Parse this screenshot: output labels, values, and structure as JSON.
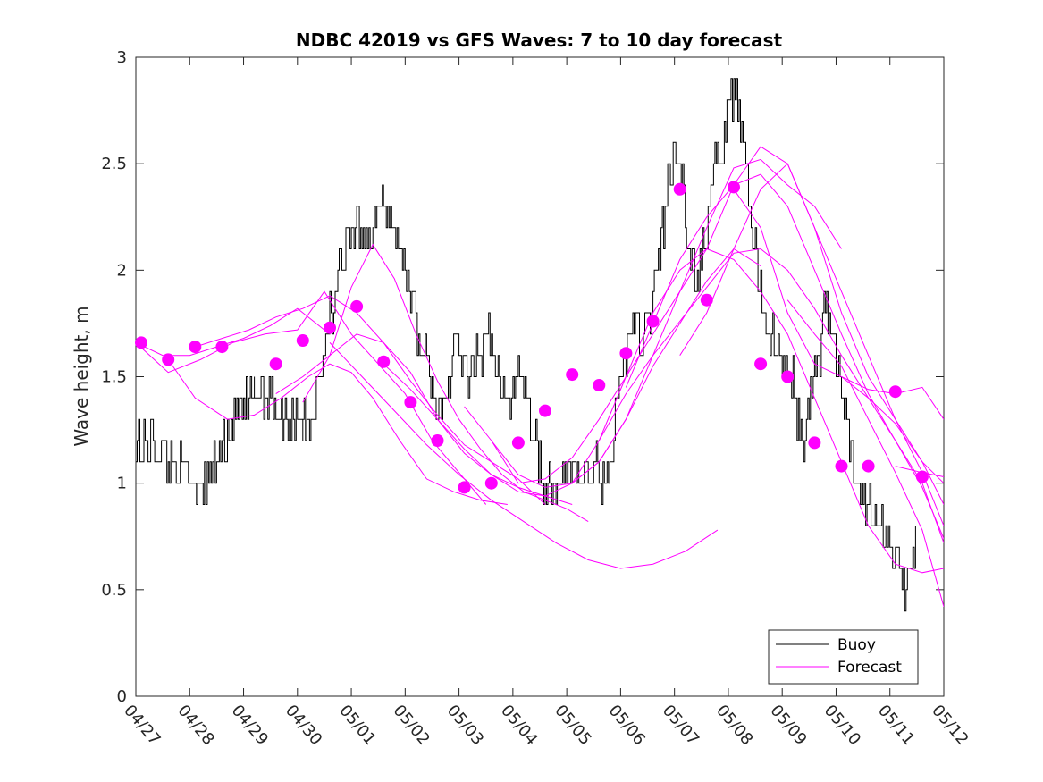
{
  "chart_data": {
    "type": "line",
    "title": "NDBC 42019 vs GFS Waves: 7 to 10 day forecast",
    "xlabel": "",
    "ylabel": "Wave height, m",
    "ylim": [
      0,
      3
    ],
    "yticks": [
      "0",
      "0.5",
      "1",
      "1.5",
      "2",
      "2.5",
      "3"
    ],
    "xlim_days": [
      0,
      15
    ],
    "xticks": [
      "04/27",
      "04/28",
      "04/29",
      "04/30",
      "05/01",
      "05/02",
      "05/03",
      "05/04",
      "05/05",
      "05/06",
      "05/07",
      "05/08",
      "05/09",
      "05/10",
      "05/11",
      "05/12"
    ],
    "legend_position": "bottom-right",
    "grid": false,
    "colors": {
      "buoy": "#000000",
      "forecast": "#ff00ff"
    },
    "legend": [
      {
        "name": "Buoy",
        "color": "#000000"
      },
      {
        "name": "Forecast",
        "color": "#ff00ff"
      }
    ],
    "series": [
      {
        "name": "Buoy",
        "kind": "step-noisy",
        "x": [
          0,
          0.1,
          0.3,
          0.5,
          0.6,
          0.9,
          1.0,
          1.2,
          1.3,
          1.5,
          1.7,
          1.8,
          2.0,
          2.2,
          2.3,
          2.5,
          2.7,
          2.8,
          3.0,
          3.1,
          3.2,
          3.3,
          3.4,
          3.5,
          3.6,
          3.8,
          4.0,
          4.1,
          4.2,
          4.3,
          4.5,
          4.6,
          4.7,
          4.8,
          4.9,
          5.0,
          5.1,
          5.2,
          5.3,
          5.4,
          5.5,
          5.6,
          5.7,
          5.8,
          5.9,
          6.0,
          6.1,
          6.3,
          6.5,
          6.6,
          6.7,
          6.8,
          6.9,
          7.0,
          7.1,
          7.2,
          7.3,
          7.4,
          7.6,
          7.7,
          7.8,
          7.9,
          8.0,
          8.1,
          8.2,
          8.3,
          8.4,
          8.5,
          8.6,
          8.7,
          8.8,
          8.9,
          9.0,
          9.1,
          9.2,
          9.3,
          9.4,
          9.5,
          9.6,
          9.7,
          9.8,
          9.9,
          10.0,
          10.1,
          10.2,
          10.3,
          10.4,
          10.5,
          10.6,
          10.7,
          10.8,
          10.9,
          11.0,
          11.1,
          11.2,
          11.3,
          11.4,
          11.5,
          11.6,
          11.7,
          11.8,
          11.9,
          12.0,
          12.1,
          12.2,
          12.3,
          12.4,
          12.5,
          12.6,
          12.7,
          12.8,
          12.9,
          13.0,
          13.1,
          13.2,
          13.3,
          13.4,
          13.5,
          13.6,
          13.7,
          13.8,
          13.9,
          14.0,
          14.1,
          14.2,
          14.3,
          14.4,
          14.5
        ],
        "y": [
          1.25,
          1.15,
          1.2,
          1.15,
          1.1,
          1.05,
          1.0,
          1.05,
          1.0,
          1.1,
          1.25,
          1.3,
          1.35,
          1.4,
          1.45,
          1.4,
          1.35,
          1.3,
          1.35,
          1.3,
          1.25,
          1.35,
          1.5,
          1.65,
          1.8,
          2.0,
          2.15,
          2.2,
          2.25,
          2.15,
          2.25,
          2.35,
          2.25,
          2.2,
          2.1,
          2.0,
          1.9,
          1.75,
          1.65,
          1.55,
          1.45,
          1.35,
          1.3,
          1.45,
          1.7,
          1.6,
          1.5,
          1.55,
          1.65,
          1.7,
          1.55,
          1.4,
          1.35,
          1.45,
          1.55,
          1.5,
          1.35,
          1.2,
          1.0,
          1.05,
          0.95,
          0.95,
          1.05,
          1.1,
          1.05,
          1.0,
          1.05,
          1.1,
          1.0,
          1.0,
          1.1,
          1.3,
          1.5,
          1.6,
          1.8,
          1.7,
          1.65,
          1.75,
          1.9,
          2.0,
          2.25,
          2.45,
          2.5,
          2.55,
          2.25,
          2.1,
          1.9,
          2.05,
          2.2,
          2.45,
          2.5,
          2.6,
          2.75,
          2.85,
          2.7,
          2.5,
          2.3,
          2.1,
          1.9,
          1.75,
          1.7,
          1.6,
          1.55,
          1.5,
          1.45,
          1.3,
          1.2,
          1.35,
          1.5,
          1.65,
          1.85,
          1.75,
          1.6,
          1.45,
          1.25,
          1.1,
          1.0,
          0.95,
          0.9,
          0.85,
          0.85,
          0.8,
          0.7,
          0.6,
          0.55,
          0.5,
          0.65,
          0.85
        ]
      },
      {
        "name": "Forecast",
        "x": [
          0,
          0.5,
          1.0,
          1.5,
          2.0,
          2.5,
          3.0,
          3.5
        ],
        "y": [
          1.66,
          1.6,
          1.6,
          1.64,
          1.68,
          1.74,
          1.82,
          1.72
        ]
      },
      {
        "name": "Forecast",
        "x": [
          0,
          0.6,
          1.2,
          1.8,
          2.4,
          3.0,
          3.5,
          4.0,
          4.5,
          5.0,
          5.5,
          6.0,
          6.5
        ],
        "y": [
          1.66,
          1.52,
          1.58,
          1.66,
          1.7,
          1.72,
          1.9,
          1.7,
          1.56,
          1.42,
          1.2,
          1.05,
          0.9
        ]
      },
      {
        "name": "Forecast",
        "x": [
          0.6,
          1.1,
          1.7,
          2.2,
          2.7,
          3.2,
          3.6,
          4.0,
          4.4,
          4.9,
          5.4,
          5.9,
          6.4,
          6.9
        ],
        "y": [
          1.58,
          1.4,
          1.3,
          1.32,
          1.4,
          1.5,
          1.56,
          1.52,
          1.4,
          1.2,
          1.02,
          0.96,
          0.92,
          0.9
        ]
      },
      {
        "name": "Forecast",
        "x": [
          1.1,
          1.6,
          2.1,
          2.6,
          3.1,
          3.6,
          4.1,
          4.6,
          5.1,
          5.6,
          6.1,
          6.6,
          7.1,
          7.6
        ],
        "y": [
          1.64,
          1.68,
          1.72,
          1.78,
          1.82,
          1.88,
          1.8,
          1.66,
          1.48,
          1.32,
          1.18,
          1.1,
          1.02,
          0.9
        ]
      },
      {
        "name": "Forecast",
        "x": [
          2.6,
          3.1,
          3.6,
          4.1,
          4.6,
          5.1,
          5.6,
          6.1,
          6.6,
          7.1,
          7.6,
          8.1
        ],
        "y": [
          1.42,
          1.5,
          1.6,
          1.7,
          1.66,
          1.52,
          1.3,
          1.14,
          1.04,
          0.98,
          0.94,
          0.9
        ]
      },
      {
        "name": "Forecast",
        "x": [
          3.1,
          3.6,
          4.0,
          4.4,
          4.8,
          5.2,
          5.6,
          6.0,
          6.4,
          6.8,
          7.2,
          7.6,
          8.0,
          8.4
        ],
        "y": [
          1.38,
          1.6,
          1.92,
          2.12,
          1.96,
          1.7,
          1.48,
          1.3,
          1.16,
          1.04,
          0.96,
          0.92,
          0.88,
          0.82
        ]
      },
      {
        "name": "Forecast",
        "x": [
          3.6,
          4.2,
          4.8,
          5.4,
          6.0,
          6.6,
          7.2,
          7.8,
          8.4,
          9.0,
          9.6,
          10.2,
          10.8
        ],
        "y": [
          1.66,
          1.5,
          1.34,
          1.18,
          1.04,
          0.92,
          0.82,
          0.72,
          0.64,
          0.6,
          0.62,
          0.68,
          0.78
        ]
      },
      {
        "name": "Forecast",
        "x": [
          4.6,
          5.1,
          5.6,
          6.1,
          6.6,
          7.1,
          7.6,
          8.1,
          8.6,
          9.1,
          9.6,
          10.1,
          10.6,
          11.1,
          11.6
        ],
        "y": [
          1.56,
          1.44,
          1.3,
          1.16,
          1.04,
          0.96,
          0.94,
          1.0,
          1.1,
          1.3,
          1.55,
          1.75,
          1.95,
          2.1,
          2.02
        ]
      },
      {
        "name": "Forecast",
        "x": [
          6.1,
          6.6,
          7.1,
          7.6,
          8.1,
          8.6,
          9.1,
          9.6,
          10.1,
          10.6,
          11.1,
          11.6,
          12.1,
          12.6,
          13.1
        ],
        "y": [
          1.36,
          1.2,
          1.04,
          0.98,
          1.0,
          1.1,
          1.3,
          1.6,
          1.9,
          2.2,
          2.48,
          2.52,
          2.4,
          2.3,
          2.1
        ]
      },
      {
        "name": "Forecast",
        "x": [
          6.6,
          7.1,
          7.6,
          8.1,
          8.6,
          9.1,
          9.6,
          10.1,
          10.6,
          11.1,
          11.6,
          12.1,
          12.6,
          13.1,
          13.6,
          14.1,
          14.6,
          15.0
        ],
        "y": [
          1.2,
          1.0,
          1.02,
          1.12,
          1.3,
          1.5,
          1.7,
          1.9,
          2.1,
          2.4,
          2.58,
          2.5,
          2.2,
          1.9,
          1.6,
          1.3,
          1.05,
          0.8
        ]
      },
      {
        "name": "Forecast",
        "x": [
          8.1,
          8.6,
          9.1,
          9.6,
          10.1,
          10.6,
          11.1,
          11.6,
          12.1,
          12.6,
          13.1,
          13.6,
          14.1,
          14.6,
          15.0
        ],
        "y": [
          1.0,
          1.2,
          1.42,
          1.6,
          1.76,
          1.92,
          2.08,
          2.1,
          2.0,
          1.82,
          1.6,
          1.4,
          1.2,
          1.0,
          0.72
        ]
      },
      {
        "name": "Forecast",
        "x": [
          8.6,
          9.1,
          9.6,
          10.1,
          10.6,
          11.1,
          11.6,
          12.1,
          12.6,
          13.1,
          13.6,
          14.1,
          14.6,
          15.0
        ],
        "y": [
          1.2,
          1.5,
          1.8,
          2.0,
          2.1,
          2.05,
          1.9,
          1.7,
          1.4,
          1.1,
          0.8,
          0.62,
          0.58,
          0.6
        ]
      },
      {
        "name": "Forecast",
        "x": [
          9.1,
          9.6,
          10.1,
          10.6,
          11.1,
          11.6,
          12.1,
          12.6,
          13.1,
          13.6,
          14.1,
          14.6,
          15.0
        ],
        "y": [
          1.45,
          1.75,
          2.05,
          2.25,
          2.4,
          2.45,
          2.3,
          2.0,
          1.7,
          1.42,
          1.2,
          0.98,
          0.74
        ]
      },
      {
        "name": "Forecast",
        "x": [
          10.1,
          10.6,
          11.1,
          11.6,
          12.1,
          12.6,
          13.1,
          13.6,
          14.1,
          14.6,
          15.0
        ],
        "y": [
          1.6,
          1.8,
          2.1,
          2.38,
          2.5,
          2.2,
          1.8,
          1.5,
          1.3,
          1.1,
          0.9
        ]
      },
      {
        "name": "Forecast",
        "x": [
          11.1,
          11.6,
          12.1,
          12.6,
          13.1,
          13.6,
          14.1,
          14.6,
          15.0
        ],
        "y": [
          2.38,
          2.2,
          1.8,
          1.56,
          1.5,
          1.4,
          1.28,
          1.1,
          1.0
        ]
      },
      {
        "name": "Forecast",
        "x": [
          12.1,
          12.6,
          13.1,
          13.6,
          14.1,
          14.6,
          15.0
        ],
        "y": [
          1.86,
          1.7,
          1.55,
          1.3,
          1.05,
          0.78,
          0.42
        ]
      },
      {
        "name": "Forecast",
        "x": [
          13.1,
          13.6,
          14.1,
          14.6,
          15.0
        ],
        "y": [
          1.5,
          1.44,
          1.42,
          1.45,
          1.3
        ]
      },
      {
        "name": "Forecast",
        "x": [
          14.1,
          14.6,
          15.0
        ],
        "y": [
          1.08,
          1.05,
          1.03
        ]
      }
    ],
    "forecast_markers": {
      "name": "Forecast",
      "x": [
        0.1,
        0.6,
        1.1,
        1.6,
        2.6,
        3.1,
        3.6,
        4.1,
        4.6,
        5.1,
        5.6,
        6.1,
        6.6,
        7.1,
        7.6,
        8.1,
        8.6,
        9.1,
        9.6,
        10.1,
        10.6,
        11.1,
        11.6,
        12.1,
        12.6,
        13.1,
        13.6,
        14.1,
        14.6
      ],
      "y": [
        1.66,
        1.58,
        1.64,
        1.64,
        1.56,
        1.67,
        1.73,
        1.83,
        1.57,
        1.38,
        1.2,
        0.98,
        1.0,
        1.19,
        1.34,
        1.51,
        1.46,
        1.61,
        1.76,
        2.38,
        1.86,
        2.39,
        1.56,
        1.5,
        1.19,
        1.08,
        1.08,
        1.43,
        1.03
      ]
    }
  }
}
